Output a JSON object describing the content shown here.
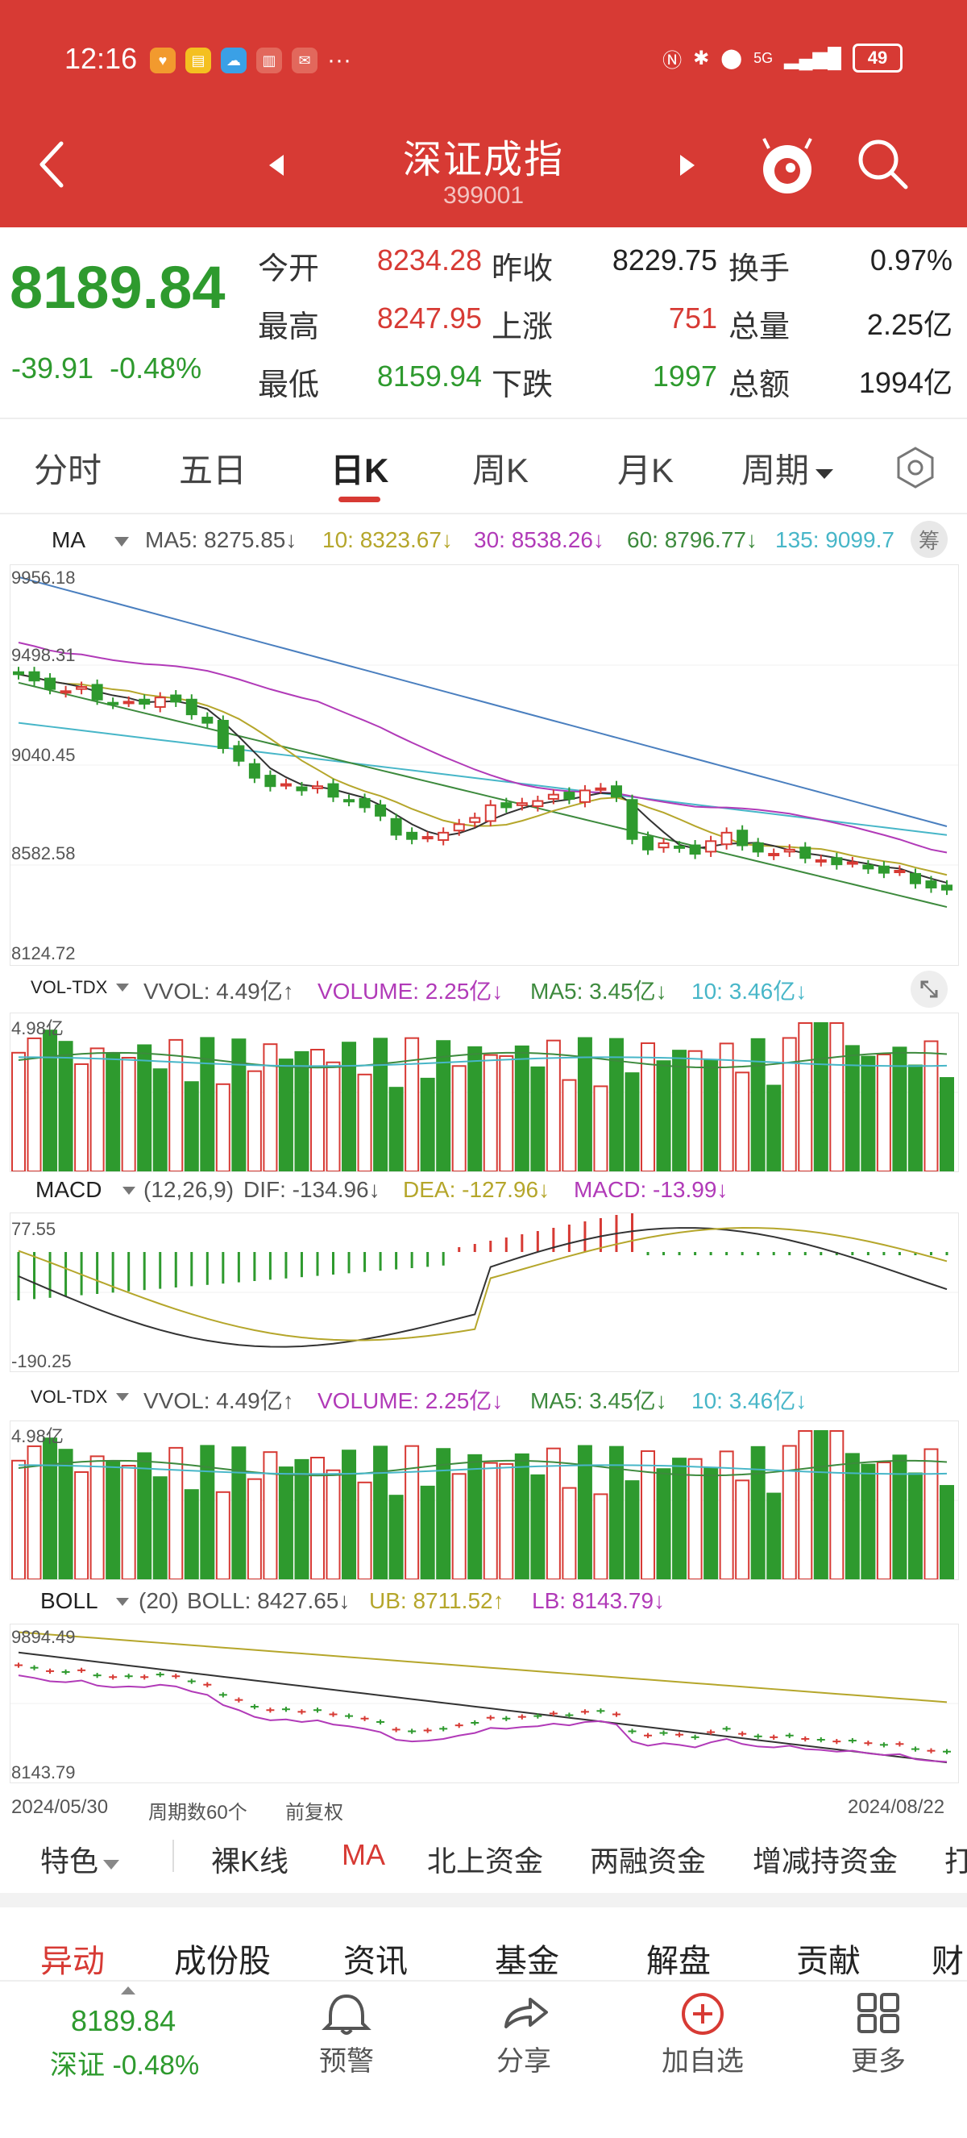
{
  "status_bar": {
    "time": "12:16",
    "battery": "49",
    "signal": "5G"
  },
  "header": {
    "title": "深证成指",
    "code": "399001"
  },
  "quote": {
    "price": "8189.84",
    "change": "-39.91",
    "change_pct": "-0.48%",
    "rows": [
      {
        "l1": "今开",
        "v1": "8234.28",
        "l2": "昨收",
        "v2": "8229.75",
        "l3": "换手",
        "v3": "0.97%"
      },
      {
        "l1": "最高",
        "v1": "8247.95",
        "l2": "上涨",
        "v2": "751",
        "l3": "总量",
        "v3": "2.25亿"
      },
      {
        "l1": "最低",
        "v1": "8159.94",
        "l2": "下跌",
        "v2": "1997",
        "l3": "总额",
        "v3": "1994亿"
      }
    ]
  },
  "tabs": [
    "分时",
    "五日",
    "日K",
    "周K",
    "月K",
    "周期"
  ],
  "ma_row": {
    "label": "MA",
    "ma5": "MA5: 8275.85↓",
    "ma10": "10: 8323.67↓",
    "ma30": "30: 8538.26↓",
    "ma60": "60: 8796.77↓",
    "ma135": "135: 9099.7",
    "chip": "筹"
  },
  "kline_axis": [
    "9956.18",
    "9498.31",
    "9040.45",
    "8582.58",
    "8124.72"
  ],
  "vol_row": {
    "label": "VOL-TDX",
    "vvol": "VVOL: 4.49亿↑",
    "volume": "VOLUME: 2.25亿↓",
    "ma5": "MA5: 3.45亿↓",
    "ma10": "10: 3.46亿↓",
    "max": "4.98亿"
  },
  "macd_row": {
    "label": "MACD",
    "params": "(12,26,9)",
    "dif": "DIF: -134.96↓",
    "dea": "DEA: -127.96↓",
    "macd": "MACD: -13.99↓",
    "top": "77.55",
    "bottom": "-190.25"
  },
  "boll_row": {
    "label": "BOLL",
    "params": "(20)",
    "boll": "BOLL: 8427.65↓",
    "ub": "UB: 8711.52↑",
    "lb": "LB: 8143.79↓",
    "top": "9894.49",
    "bottom": "8143.79"
  },
  "footer_dates": {
    "start": "2024/05/30",
    "periods": "周期数60个",
    "adj": "前复权",
    "end": "2024/08/22"
  },
  "func_tabs": [
    "特色",
    "裸K线",
    "MA",
    "北上资金",
    "两融资金",
    "增减持资金",
    "打"
  ],
  "section_tabs": [
    "异动",
    "成份股",
    "资讯",
    "基金",
    "解盘",
    "贡献",
    "财"
  ],
  "bottom_nav": {
    "price": "8189.84",
    "name_pct": "深证 -0.48%",
    "alert": "预警",
    "share": "分享",
    "add": "加自选",
    "more": "更多"
  },
  "colors": {
    "header": "#d73a34",
    "up": "#d73a34",
    "down": "#2e9a2e",
    "ma5": "#333333",
    "ma10": "#b5a62b",
    "ma30": "#b13ab8",
    "ma60": "#3d8a3d",
    "ma135": "#47b6c8"
  }
}
